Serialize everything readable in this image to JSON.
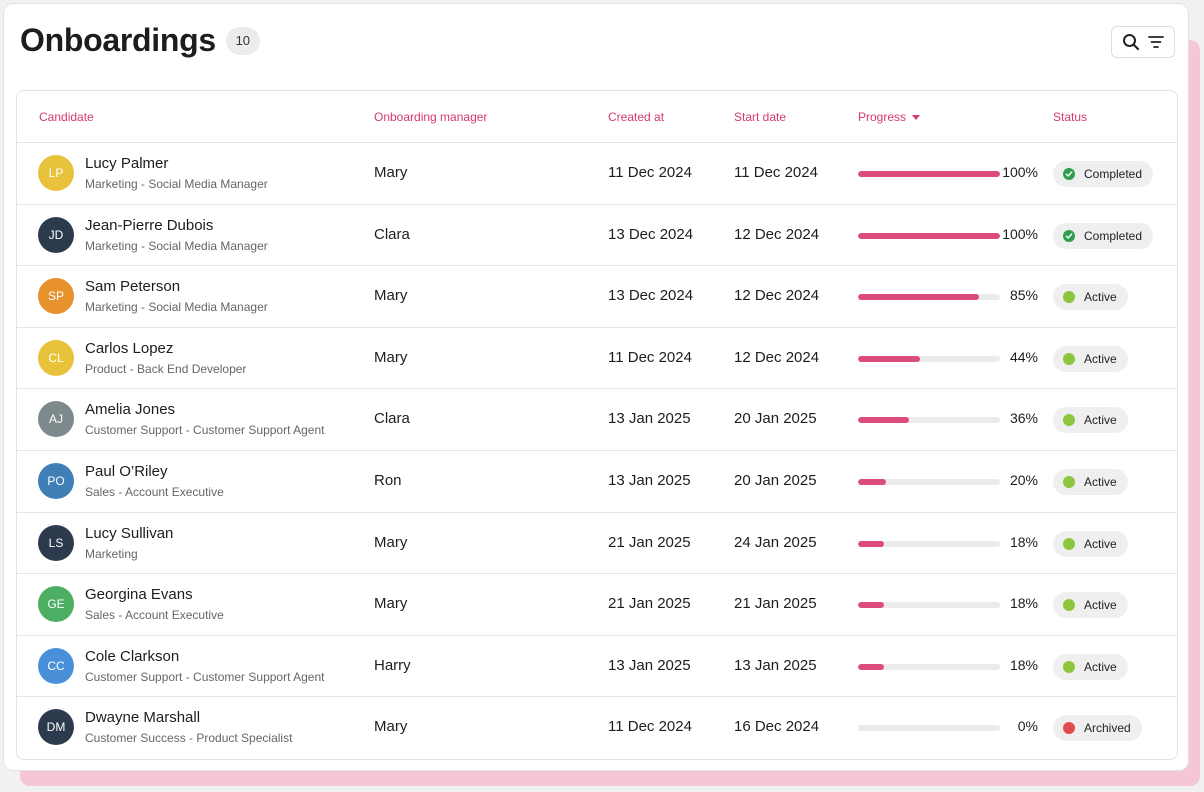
{
  "title": "Onboardings",
  "count": "10",
  "toolbar": {
    "search_icon": "search-icon",
    "filter_icon": "filter-icon"
  },
  "columns": {
    "candidate": "Candidate",
    "manager": "Onboarding manager",
    "created": "Created at",
    "start": "Start date",
    "progress": "Progress",
    "status": "Status"
  },
  "colors": {
    "accent": "#d8396f",
    "progress_fill": "#dd4a7d",
    "completed_dot": "#2e9e4f",
    "active_dot": "#8cc63f",
    "archived_dot": "#e04b4b"
  },
  "rows": [
    {
      "initials": "LP",
      "avatar_color": "#e8c23a",
      "name": "Lucy Palmer",
      "role": "Marketing - Social Media Manager",
      "manager": "Mary",
      "created": "11 Dec 2024",
      "start": "11 Dec 2024",
      "progress": 100,
      "progress_label": "100%",
      "status": "Completed",
      "status_type": "completed"
    },
    {
      "initials": "JD",
      "avatar_color": "#2c3a4e",
      "name": "Jean-Pierre Dubois",
      "role": "Marketing - Social Media Manager",
      "manager": "Clara",
      "created": "13 Dec 2024",
      "start": "12 Dec 2024",
      "progress": 100,
      "progress_label": "100%",
      "status": "Completed",
      "status_type": "completed"
    },
    {
      "initials": "SP",
      "avatar_color": "#e8912f",
      "name": "Sam Peterson",
      "role": "Marketing - Social Media Manager",
      "manager": "Mary",
      "created": "13 Dec 2024",
      "start": "12 Dec 2024",
      "progress": 85,
      "progress_label": "85%",
      "status": "Active",
      "status_type": "active"
    },
    {
      "initials": "CL",
      "avatar_color": "#e8c23a",
      "name": "Carlos Lopez",
      "role": "Product - Back End Developer",
      "manager": "Mary",
      "created": "11 Dec 2024",
      "start": "12 Dec 2024",
      "progress": 44,
      "progress_label": "44%",
      "status": "Active",
      "status_type": "active"
    },
    {
      "initials": "AJ",
      "avatar_color": "#7d8a8c",
      "name": "Amelia Jones",
      "role": "Customer Support - Customer Support Agent",
      "manager": "Clara",
      "created": "13 Jan 2025",
      "start": "20 Jan 2025",
      "progress": 36,
      "progress_label": "36%",
      "status": "Active",
      "status_type": "active"
    },
    {
      "initials": "PO",
      "avatar_color": "#3f7fb5",
      "name": "Paul O’Riley",
      "role": "Sales - Account Executive",
      "manager": "Ron",
      "created": "13 Jan 2025",
      "start": "20 Jan 2025",
      "progress": 20,
      "progress_label": "20%",
      "status": "Active",
      "status_type": "active"
    },
    {
      "initials": "LS",
      "avatar_color": "#2c3a4e",
      "name": "Lucy Sullivan",
      "role": "Marketing",
      "manager": "Mary",
      "created": "21 Jan 2025",
      "start": "24 Jan 2025",
      "progress": 18,
      "progress_label": "18%",
      "status": "Active",
      "status_type": "active"
    },
    {
      "initials": "GE",
      "avatar_color": "#4cae62",
      "name": "Georgina Evans",
      "role": "Sales - Account Executive",
      "manager": "Mary",
      "created": "21 Jan 2025",
      "start": "21 Jan 2025",
      "progress": 18,
      "progress_label": "18%",
      "status": "Active",
      "status_type": "active"
    },
    {
      "initials": "CC",
      "avatar_color": "#4a90d9",
      "name": "Cole Clarkson",
      "role": "Customer Support - Customer Support Agent",
      "manager": "Harry",
      "created": "13 Jan 2025",
      "start": "13 Jan 2025",
      "progress": 18,
      "progress_label": "18%",
      "status": "Active",
      "status_type": "active"
    },
    {
      "initials": "DM",
      "avatar_color": "#2c3a4e",
      "name": "Dwayne Marshall",
      "role": "Customer Success - Product Specialist",
      "manager": "Mary",
      "created": "11 Dec 2024",
      "start": "16 Dec 2024",
      "progress": 0,
      "progress_label": "0%",
      "status": "Archived",
      "status_type": "archived"
    }
  ]
}
